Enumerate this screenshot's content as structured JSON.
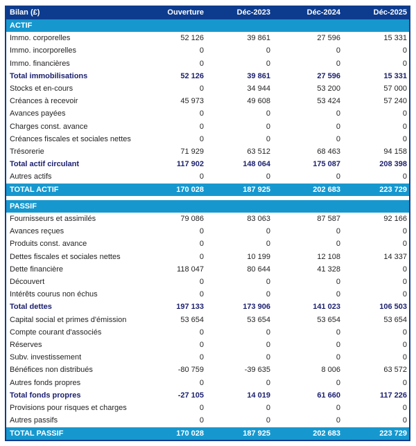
{
  "header": {
    "title": "Bilan (£)",
    "columns": [
      "Ouverture",
      "Déc-2023",
      "Déc-2024",
      "Déc-2025"
    ]
  },
  "colors": {
    "header_bg": "#0d3c8e",
    "section_bg": "#1698cf",
    "total_text": "#1a1f6e"
  },
  "rows": [
    {
      "type": "section",
      "label": "ACTIF",
      "values": []
    },
    {
      "type": "data",
      "label": "Immo. corporelles",
      "values": [
        "52 126",
        "39 861",
        "27 596",
        "15 331"
      ]
    },
    {
      "type": "data",
      "label": "Immo. incorporelles",
      "values": [
        "0",
        "0",
        "0",
        "0"
      ]
    },
    {
      "type": "data",
      "label": "Immo. financières",
      "values": [
        "0",
        "0",
        "0",
        "0"
      ]
    },
    {
      "type": "total",
      "label": "Total immobilisations",
      "values": [
        "52 126",
        "39 861",
        "27 596",
        "15 331"
      ]
    },
    {
      "type": "data",
      "label": "Stocks et en-cours",
      "values": [
        "0",
        "34 944",
        "53 200",
        "57 000"
      ]
    },
    {
      "type": "data",
      "label": "Créances à recevoir",
      "values": [
        "45 973",
        "49 608",
        "53 424",
        "57 240"
      ]
    },
    {
      "type": "data",
      "label": "Avances payées",
      "values": [
        "0",
        "0",
        "0",
        "0"
      ]
    },
    {
      "type": "data",
      "label": "Charges const. avance",
      "values": [
        "0",
        "0",
        "0",
        "0"
      ]
    },
    {
      "type": "data",
      "label": "Créances fiscales et sociales nettes",
      "values": [
        "0",
        "0",
        "0",
        "0"
      ]
    },
    {
      "type": "data",
      "label": "Trésorerie",
      "values": [
        "71 929",
        "63 512",
        "68 463",
        "94 158"
      ]
    },
    {
      "type": "total",
      "label": "Total actif circulant",
      "values": [
        "117 902",
        "148 064",
        "175 087",
        "208 398"
      ]
    },
    {
      "type": "data",
      "label": "Autres actifs",
      "values": [
        "0",
        "0",
        "0",
        "0"
      ]
    },
    {
      "type": "grand",
      "label": "TOTAL ACTIF",
      "values": [
        "170 028",
        "187 925",
        "202 683",
        "223 729"
      ]
    },
    {
      "type": "gap",
      "label": "",
      "values": []
    },
    {
      "type": "section",
      "label": "PASSIF",
      "values": []
    },
    {
      "type": "data",
      "label": "Fournisseurs et assimilés",
      "values": [
        "79 086",
        "83 063",
        "87 587",
        "92 166"
      ]
    },
    {
      "type": "data",
      "label": "Avances reçues",
      "values": [
        "0",
        "0",
        "0",
        "0"
      ]
    },
    {
      "type": "data",
      "label": "Produits const. avance",
      "values": [
        "0",
        "0",
        "0",
        "0"
      ]
    },
    {
      "type": "data",
      "label": "Dettes fiscales et sociales nettes",
      "values": [
        "0",
        "10 199",
        "12 108",
        "14 337"
      ]
    },
    {
      "type": "data",
      "label": "Dette financière",
      "values": [
        "118 047",
        "80 644",
        "41 328",
        "0"
      ]
    },
    {
      "type": "data",
      "label": "Découvert",
      "values": [
        "0",
        "0",
        "0",
        "0"
      ]
    },
    {
      "type": "data",
      "label": "Intérêts courus non échus",
      "values": [
        "0",
        "0",
        "0",
        "0"
      ]
    },
    {
      "type": "total",
      "label": "Total dettes",
      "values": [
        "197 133",
        "173 906",
        "141 023",
        "106 503"
      ]
    },
    {
      "type": "data",
      "label": "Capital social et primes d'émission",
      "values": [
        "53 654",
        "53 654",
        "53 654",
        "53 654"
      ]
    },
    {
      "type": "data",
      "label": "Compte courant d'associés",
      "values": [
        "0",
        "0",
        "0",
        "0"
      ]
    },
    {
      "type": "data",
      "label": "Réserves",
      "values": [
        "0",
        "0",
        "0",
        "0"
      ]
    },
    {
      "type": "data",
      "label": "Subv. investissement",
      "values": [
        "0",
        "0",
        "0",
        "0"
      ]
    },
    {
      "type": "data",
      "label": "Bénéfices non distribués",
      "values": [
        "-80 759",
        "-39 635",
        "8 006",
        "63 572"
      ]
    },
    {
      "type": "data",
      "label": "Autres fonds propres",
      "values": [
        "0",
        "0",
        "0",
        "0"
      ]
    },
    {
      "type": "total",
      "label": "Total fonds propres",
      "values": [
        "-27 105",
        "14 019",
        "61 660",
        "117 226"
      ]
    },
    {
      "type": "data",
      "label": "Provisions pour risques et charges",
      "values": [
        "0",
        "0",
        "0",
        "0"
      ]
    },
    {
      "type": "data",
      "label": "Autres passifs",
      "values": [
        "0",
        "0",
        "0",
        "0"
      ]
    },
    {
      "type": "grand",
      "label": "TOTAL PASSIF",
      "values": [
        "170 028",
        "187 925",
        "202 683",
        "223 729"
      ]
    }
  ]
}
